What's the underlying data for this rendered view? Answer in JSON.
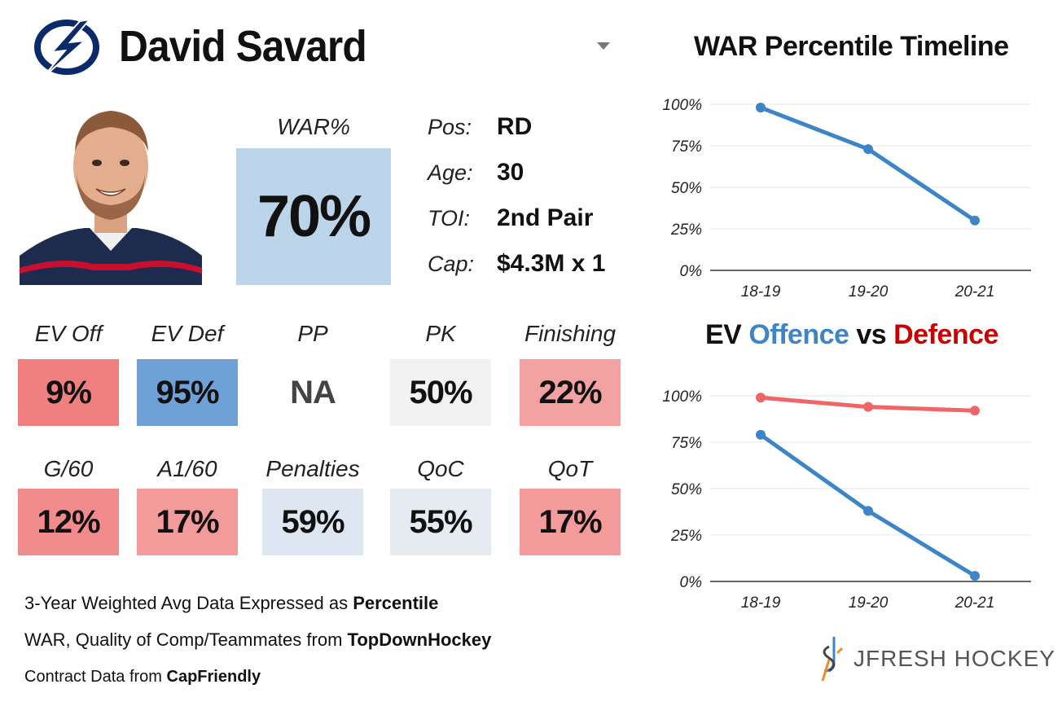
{
  "header": {
    "player_name": "David Savard",
    "team_logo_icon": "lightning-bolt-icon"
  },
  "war": {
    "label": "WAR%",
    "value": "70%"
  },
  "info": [
    {
      "label": "Pos:",
      "value": "RD"
    },
    {
      "label": "Age:",
      "value": "30"
    },
    {
      "label": "TOI:",
      "value": "2nd Pair"
    },
    {
      "label": "Cap:",
      "value": "$4.3M x 1"
    }
  ],
  "stats_row1": [
    {
      "label": "EV Off",
      "value": "9%",
      "color": "#f08080"
    },
    {
      "label": "EV Def",
      "value": "95%",
      "color": "#6fa1d6"
    },
    {
      "label": "PP",
      "value": "NA",
      "color": "#ffffff"
    },
    {
      "label": "PK",
      "value": "50%",
      "color": "#f2f2f2"
    },
    {
      "label": "Finishing",
      "value": "22%",
      "color": "#f3a1a1"
    }
  ],
  "stats_row2": [
    {
      "label": "G/60",
      "value": "12%",
      "color": "#f08c8c"
    },
    {
      "label": "A1/60",
      "value": "17%",
      "color": "#f39a9a"
    },
    {
      "label": "Penalties",
      "value": "59%",
      "color": "#dde6f1"
    },
    {
      "label": "QoC",
      "value": "55%",
      "color": "#e6ebf1"
    },
    {
      "label": "QoT",
      "value": "17%",
      "color": "#f39a9a"
    }
  ],
  "notes": {
    "line1_prefix": "3-Year Weighted Avg Data Expressed as ",
    "line1_bold": "Percentile",
    "line2_prefix": "WAR, Quality of Comp/Teammates from ",
    "line2_bold": "TopDownHockey",
    "line3_prefix": "Contract Data from ",
    "line3_bold": "CapFriendly"
  },
  "brand": {
    "text": "JFRESH HOCKEY"
  },
  "chart_titles": {
    "chart1": "WAR Percentile Timeline",
    "chart2_part1": "EV ",
    "chart2_offence": "Offence",
    "chart2_vs": " vs ",
    "chart2_defence": "Defence"
  },
  "colors": {
    "offence": "#3d85c6",
    "defence": "#cc0000",
    "defence_line": "#f06666",
    "war_line": "#3d85c6"
  },
  "chart_data": [
    {
      "type": "line",
      "title": "WAR Percentile Timeline",
      "categories": [
        "18-19",
        "19-20",
        "20-21"
      ],
      "series": [
        {
          "name": "WAR",
          "values": [
            98,
            73,
            30
          ]
        }
      ],
      "ylim": [
        0,
        100
      ],
      "yticks": [
        "0%",
        "25%",
        "50%",
        "75%",
        "100%"
      ],
      "grid": true
    },
    {
      "type": "line",
      "title": "EV Offence vs Defence",
      "categories": [
        "18-19",
        "19-20",
        "20-21"
      ],
      "series": [
        {
          "name": "Offence",
          "values": [
            79,
            38,
            3
          ]
        },
        {
          "name": "Defence",
          "values": [
            99,
            94,
            92
          ]
        }
      ],
      "ylim": [
        0,
        100
      ],
      "yticks": [
        "0%",
        "25%",
        "50%",
        "75%",
        "100%"
      ],
      "grid": true
    }
  ]
}
